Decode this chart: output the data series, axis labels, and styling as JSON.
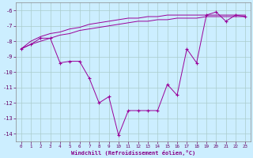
{
  "xlabel": "Windchill (Refroidissement éolien,°C)",
  "x_values": [
    0,
    1,
    2,
    3,
    4,
    5,
    6,
    7,
    8,
    9,
    10,
    11,
    12,
    13,
    14,
    15,
    16,
    17,
    18,
    19,
    20,
    21,
    22,
    23
  ],
  "y_curve": [
    -8.5,
    -8.2,
    -7.8,
    -7.8,
    -9.4,
    -9.3,
    -9.3,
    -10.4,
    -12.0,
    -11.6,
    -14.1,
    -12.5,
    -12.5,
    -12.5,
    -12.5,
    -10.8,
    -11.5,
    -8.5,
    -9.4,
    -6.3,
    -6.1,
    -6.7,
    -6.3,
    -6.4
  ],
  "y_line1": [
    -8.5,
    -8.2,
    -8.0,
    -7.8,
    -7.6,
    -7.5,
    -7.3,
    -7.2,
    -7.1,
    -7.0,
    -6.9,
    -6.8,
    -6.7,
    -6.7,
    -6.6,
    -6.6,
    -6.5,
    -6.5,
    -6.5,
    -6.4,
    -6.4,
    -6.4,
    -6.4,
    -6.4
  ],
  "y_line2": [
    -8.5,
    -8.0,
    -7.7,
    -7.5,
    -7.4,
    -7.2,
    -7.1,
    -6.9,
    -6.8,
    -6.7,
    -6.6,
    -6.5,
    -6.5,
    -6.4,
    -6.4,
    -6.3,
    -6.3,
    -6.3,
    -6.3,
    -6.3,
    -6.3,
    -6.3,
    -6.3,
    -6.3
  ],
  "line_color": "#990099",
  "bg_color": "#cceeff",
  "grid_color": "#aacccc",
  "ylim": [
    -14.5,
    -5.5
  ],
  "xlim": [
    -0.5,
    23.5
  ],
  "yticks": [
    -14,
    -13,
    -12,
    -11,
    -10,
    -9,
    -8,
    -7,
    -6
  ],
  "xticks": [
    0,
    1,
    2,
    3,
    4,
    5,
    6,
    7,
    8,
    9,
    10,
    11,
    12,
    13,
    14,
    15,
    16,
    17,
    18,
    19,
    20,
    21,
    22,
    23
  ],
  "xlabel_color": "#880088",
  "tick_color": "#660066"
}
